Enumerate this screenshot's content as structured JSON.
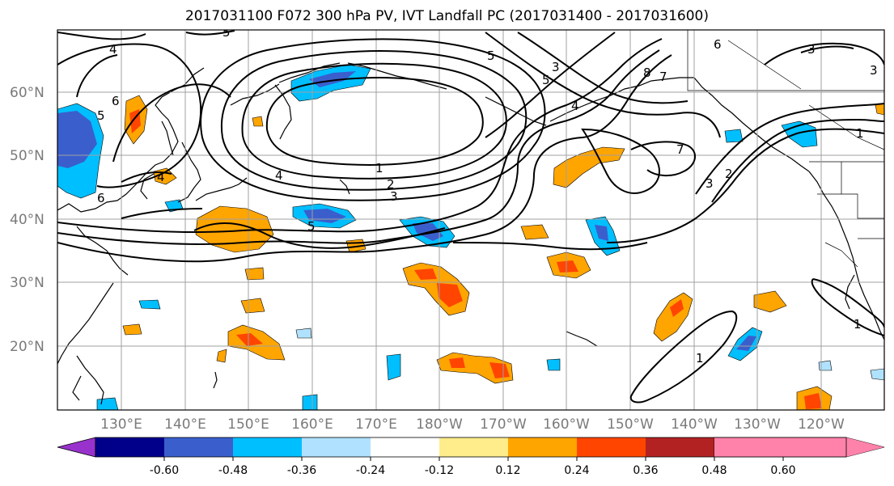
{
  "title": "2017031100 F072 300 hPa PV, IVT Landfall PC (2017031400 - 2017031600)",
  "map": {
    "lat_labels": [
      "60°N",
      "50°N",
      "40°N",
      "30°N",
      "20°N"
    ],
    "lon_labels": [
      "130°E",
      "140°E",
      "150°E",
      "160°E",
      "170°E",
      "180°W",
      "170°W",
      "160°W",
      "150°W",
      "140°W",
      "130°W",
      "120°W"
    ],
    "contour_labels": [
      "4",
      "5",
      "6",
      "5",
      "4",
      "8",
      "7",
      "6",
      "5",
      "3",
      "3",
      "5",
      "6",
      "4",
      "1",
      "2",
      "3",
      "4",
      "5",
      "3",
      "7",
      "3",
      "2",
      "1",
      "1",
      "1"
    ]
  },
  "colorbar": {
    "labels": [
      "-0.60",
      "-0.48",
      "-0.36",
      "-0.24",
      "-0.12",
      "0.12",
      "0.24",
      "0.36",
      "0.48",
      "0.60"
    ],
    "colors": [
      "#9932cc",
      "#00008b",
      "#3a5fcd",
      "#00bfff",
      "#b0e2ff",
      "#ffffff",
      "#ffec8b",
      "#ffa500",
      "#ff4500",
      "#b22222",
      "#ff82ab"
    ]
  },
  "colors": {
    "coast": "#000000",
    "grid": "#a0a0a0",
    "contour": "#000000"
  }
}
